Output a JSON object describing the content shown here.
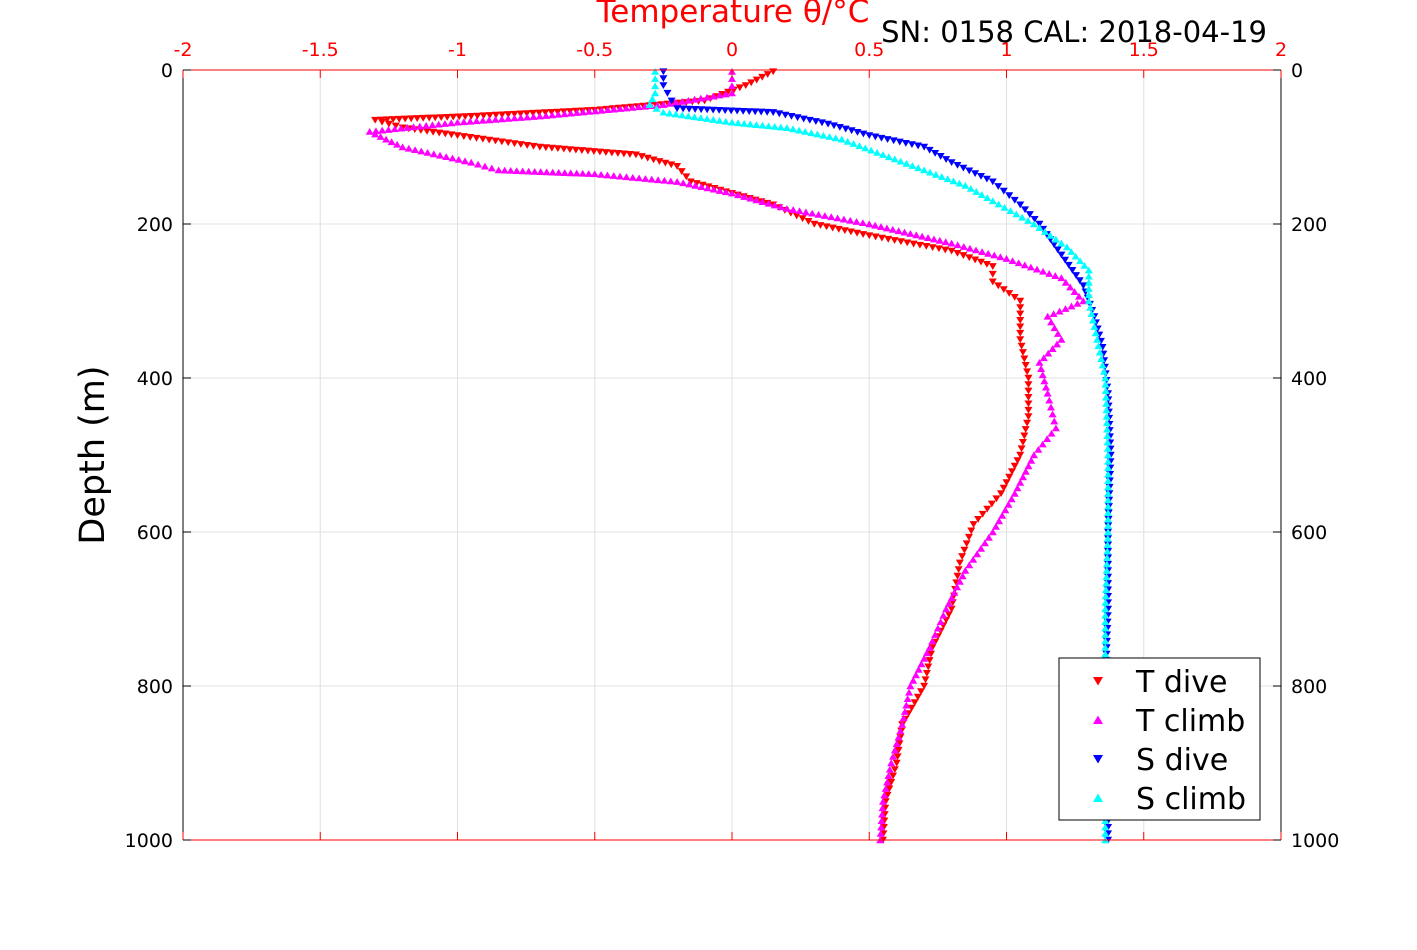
{
  "chart_data": {
    "type": "scatter",
    "title": "Temperature θ/°C",
    "subtitle": "SN: 0158  CAL: 2018-04-19",
    "xlabel": "Temperature θ/°C",
    "ylabel": "Depth (m)",
    "xlim": [
      -2,
      2
    ],
    "ylim": [
      0,
      1000
    ],
    "y_reversed": true,
    "grid": true,
    "legend_position": "bottom-right",
    "x_ticks": [
      -2,
      -1.5,
      -1,
      -0.5,
      0,
      0.5,
      1,
      1.5,
      2
    ],
    "y_ticks": [
      0,
      200,
      400,
      600,
      800,
      1000
    ],
    "x_tick_labels": [
      "-2",
      "-1.5",
      "-1",
      "-0.5",
      "0",
      "0.5",
      "1",
      "1.5",
      "2"
    ],
    "y_tick_labels": [
      "0",
      "200",
      "400",
      "600",
      "800",
      "1000"
    ],
    "colors": {
      "axis_top": "#ff0000",
      "title": "#ff0000",
      "grid": "#e0e0e0"
    },
    "series": [
      {
        "name": "T dive",
        "marker": "triangle-down",
        "color": "#ff0000",
        "points": [
          [
            0.15,
            2
          ],
          [
            0.05,
            20
          ],
          [
            -0.1,
            40
          ],
          [
            -0.5,
            52
          ],
          [
            -0.95,
            60
          ],
          [
            -1.3,
            65
          ],
          [
            -1.2,
            75
          ],
          [
            -1.0,
            85
          ],
          [
            -0.7,
            100
          ],
          [
            -0.35,
            110
          ],
          [
            -0.2,
            125
          ],
          [
            -0.15,
            145
          ],
          [
            0.0,
            160
          ],
          [
            0.15,
            175
          ],
          [
            0.3,
            200
          ],
          [
            0.5,
            215
          ],
          [
            0.8,
            235
          ],
          [
            0.95,
            255
          ],
          [
            0.95,
            275
          ],
          [
            1.05,
            300
          ],
          [
            1.05,
            350
          ],
          [
            1.08,
            400
          ],
          [
            1.08,
            450
          ],
          [
            1.05,
            500
          ],
          [
            0.98,
            550
          ],
          [
            0.88,
            590
          ],
          [
            0.83,
            640
          ],
          [
            0.8,
            700
          ],
          [
            0.73,
            750
          ],
          [
            0.7,
            800
          ],
          [
            0.62,
            850
          ],
          [
            0.6,
            900
          ],
          [
            0.56,
            950
          ],
          [
            0.55,
            1000
          ]
        ]
      },
      {
        "name": "T climb",
        "marker": "triangle-up",
        "color": "#ff00ff",
        "points": [
          [
            0.0,
            2
          ],
          [
            0.0,
            30
          ],
          [
            -0.25,
            45
          ],
          [
            -0.7,
            60
          ],
          [
            -1.0,
            68
          ],
          [
            -1.32,
            80
          ],
          [
            -1.2,
            100
          ],
          [
            -0.95,
            120
          ],
          [
            -0.85,
            130
          ],
          [
            -0.5,
            135
          ],
          [
            -0.2,
            145
          ],
          [
            0.0,
            160
          ],
          [
            0.2,
            180
          ],
          [
            0.5,
            200
          ],
          [
            0.8,
            225
          ],
          [
            1.0,
            245
          ],
          [
            1.2,
            270
          ],
          [
            1.28,
            300
          ],
          [
            1.15,
            320
          ],
          [
            1.2,
            350
          ],
          [
            1.12,
            380
          ],
          [
            1.15,
            420
          ],
          [
            1.18,
            465
          ],
          [
            1.1,
            500
          ],
          [
            1.03,
            550
          ],
          [
            0.95,
            600
          ],
          [
            0.85,
            650
          ],
          [
            0.78,
            700
          ],
          [
            0.72,
            750
          ],
          [
            0.65,
            800
          ],
          [
            0.62,
            850
          ],
          [
            0.58,
            900
          ],
          [
            0.55,
            950
          ],
          [
            0.54,
            1000
          ]
        ]
      },
      {
        "name": "S dive",
        "marker": "triangle-down",
        "color": "#0000ff",
        "points": [
          [
            -0.25,
            2
          ],
          [
            -0.25,
            20
          ],
          [
            -0.22,
            40
          ],
          [
            -0.2,
            50
          ],
          [
            0.15,
            55
          ],
          [
            0.35,
            70
          ],
          [
            0.5,
            85
          ],
          [
            0.7,
            100
          ],
          [
            0.8,
            120
          ],
          [
            0.95,
            145
          ],
          [
            1.05,
            175
          ],
          [
            1.12,
            200
          ],
          [
            1.2,
            240
          ],
          [
            1.28,
            280
          ],
          [
            1.32,
            320
          ],
          [
            1.35,
            360
          ],
          [
            1.37,
            420
          ],
          [
            1.38,
            500
          ],
          [
            1.37,
            600
          ],
          [
            1.37,
            700
          ],
          [
            1.36,
            800
          ],
          [
            1.37,
            900
          ],
          [
            1.37,
            1000
          ]
        ]
      },
      {
        "name": "S climb",
        "marker": "triangle-up",
        "color": "#00ffff",
        "points": [
          [
            -0.28,
            2
          ],
          [
            -0.28,
            30
          ],
          [
            -0.3,
            45
          ],
          [
            -0.25,
            55
          ],
          [
            0.0,
            68
          ],
          [
            0.2,
            75
          ],
          [
            0.4,
            90
          ],
          [
            0.55,
            110
          ],
          [
            0.7,
            130
          ],
          [
            0.85,
            150
          ],
          [
            0.95,
            170
          ],
          [
            1.1,
            200
          ],
          [
            1.22,
            230
          ],
          [
            1.3,
            260
          ],
          [
            1.3,
            300
          ],
          [
            1.33,
            350
          ],
          [
            1.36,
            400
          ],
          [
            1.37,
            500
          ],
          [
            1.37,
            600
          ],
          [
            1.36,
            700
          ],
          [
            1.36,
            800
          ],
          [
            1.36,
            900
          ],
          [
            1.36,
            1000
          ]
        ]
      }
    ]
  }
}
